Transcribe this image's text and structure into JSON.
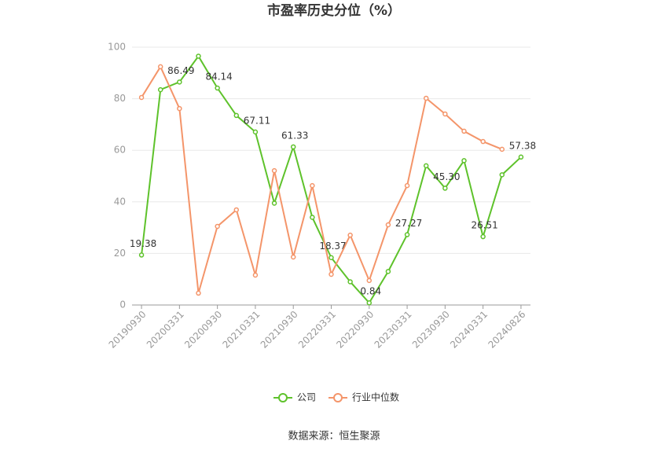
{
  "chart_data": {
    "type": "line",
    "title": "市盈率历史分位（%）",
    "categories": [
      "20190930",
      null,
      "20200331",
      null,
      "20200930",
      null,
      "20210331",
      null,
      "20210930",
      null,
      "20220331",
      null,
      "20220930",
      null,
      "20230331",
      null,
      "20230930",
      null,
      "20240331",
      null,
      "20240826"
    ],
    "series": [
      {
        "name": "公司",
        "color": "#5ec22b",
        "values": [
          19.38,
          83.5,
          86.49,
          96.5,
          84.14,
          73.5,
          67.11,
          39.5,
          61.33,
          34,
          18.37,
          9,
          0.84,
          13,
          27.27,
          54,
          45.3,
          56,
          26.51,
          50.5,
          57.38
        ],
        "value_labels": [
          "19.38",
          null,
          "86.49",
          null,
          "84.14",
          null,
          "67.11",
          null,
          "61.33",
          null,
          "18.37",
          null,
          "0.84",
          null,
          "27.27",
          null,
          "45.30",
          null,
          "26.51",
          null,
          "57.38"
        ]
      },
      {
        "name": "行业中位数",
        "color": "#f4956a",
        "values": [
          80.5,
          92.4,
          76.2,
          4.6,
          30.5,
          36.9,
          11.6,
          52.1,
          18.6,
          46.3,
          11.9,
          27.1,
          9.5,
          31.1,
          46.3,
          80.2,
          74.1,
          67.4,
          63.4,
          60.4,
          null
        ]
      }
    ],
    "ylim": [
      0,
      100
    ],
    "yticks": [
      0,
      20,
      40,
      60,
      80,
      100
    ],
    "grid": true,
    "source": "数据来源：恒生聚源"
  }
}
